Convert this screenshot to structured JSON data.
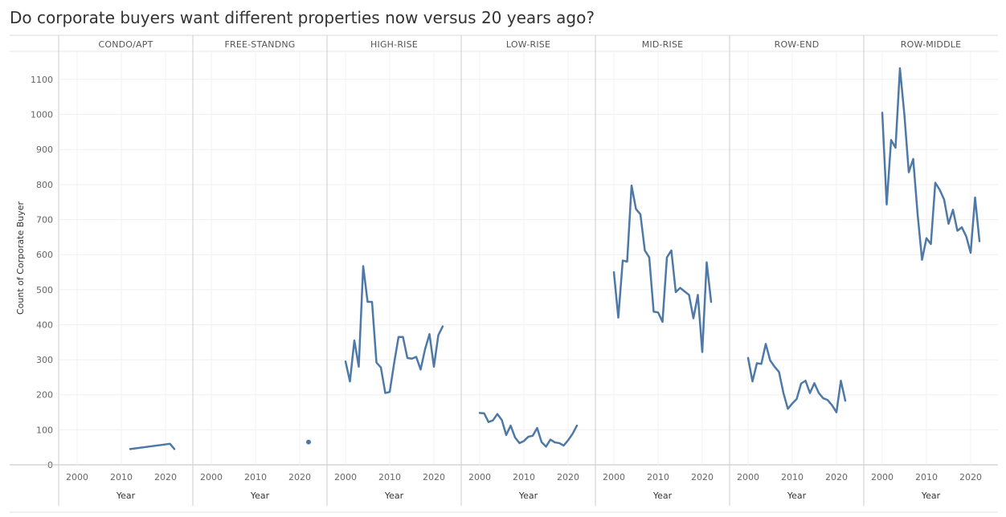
{
  "chart_data": {
    "type": "line",
    "title": "Do corporate buyers want different properties now versus 20 years ago?",
    "ylabel": "Count of Corporate Buyer",
    "xlabel": "Year",
    "ylim": [
      0,
      1180
    ],
    "yticks": [
      0,
      100,
      200,
      300,
      400,
      500,
      600,
      700,
      800,
      900,
      1000,
      1100
    ],
    "xlim": [
      1998,
      2024
    ],
    "xticks": [
      2000,
      2010,
      2020
    ],
    "grid": true,
    "color": "#4e79a7",
    "panels": [
      {
        "name": "CONDO/APT",
        "x": [
          2012,
          2021,
          2022
        ],
        "y": [
          45,
          60,
          45
        ]
      },
      {
        "name": "FREE-STANDNG",
        "x": [
          2022
        ],
        "y": [
          65
        ]
      },
      {
        "name": "HIGH-RISE",
        "x": [
          2000,
          2001,
          2002,
          2003,
          2004,
          2005,
          2006,
          2007,
          2008,
          2009,
          2010,
          2011,
          2012,
          2013,
          2014,
          2015,
          2016,
          2017,
          2018,
          2019,
          2020,
          2021,
          2022
        ],
        "y": [
          295,
          238,
          355,
          280,
          567,
          465,
          465,
          292,
          278,
          205,
          208,
          290,
          365,
          365,
          305,
          303,
          308,
          272,
          330,
          373,
          280,
          370,
          395
        ]
      },
      {
        "name": "LOW-RISE",
        "x": [
          2000,
          2001,
          2002,
          2003,
          2004,
          2005,
          2006,
          2007,
          2008,
          2009,
          2010,
          2011,
          2012,
          2013,
          2014,
          2015,
          2016,
          2017,
          2018,
          2019,
          2020,
          2021,
          2022
        ],
        "y": [
          148,
          147,
          122,
          127,
          145,
          128,
          85,
          112,
          78,
          62,
          68,
          80,
          83,
          105,
          65,
          52,
          72,
          64,
          62,
          55,
          70,
          88,
          112
        ]
      },
      {
        "name": "MID-RISE",
        "x": [
          2000,
          2001,
          2002,
          2003,
          2004,
          2005,
          2006,
          2007,
          2008,
          2009,
          2010,
          2011,
          2012,
          2013,
          2014,
          2015,
          2016,
          2017,
          2018,
          2019,
          2020,
          2021,
          2022
        ],
        "y": [
          550,
          420,
          583,
          580,
          797,
          730,
          715,
          612,
          592,
          437,
          435,
          408,
          592,
          612,
          493,
          505,
          495,
          485,
          418,
          485,
          322,
          578,
          465
        ]
      },
      {
        "name": "ROW-END",
        "x": [
          2000,
          2001,
          2002,
          2003,
          2004,
          2005,
          2006,
          2007,
          2008,
          2009,
          2010,
          2011,
          2012,
          2013,
          2014,
          2015,
          2016,
          2017,
          2018,
          2019,
          2020,
          2021,
          2022
        ],
        "y": [
          305,
          238,
          290,
          288,
          345,
          298,
          280,
          265,
          205,
          160,
          175,
          188,
          232,
          240,
          205,
          233,
          205,
          190,
          185,
          170,
          150,
          240,
          183
        ]
      },
      {
        "name": "ROW-MIDDLE",
        "x": [
          2000,
          2001,
          2002,
          2003,
          2004,
          2005,
          2006,
          2007,
          2008,
          2009,
          2010,
          2011,
          2012,
          2013,
          2014,
          2015,
          2016,
          2017,
          2018,
          2019,
          2020,
          2021,
          2022
        ],
        "y": [
          1005,
          743,
          927,
          905,
          1132,
          1000,
          835,
          873,
          715,
          585,
          647,
          630,
          805,
          785,
          757,
          688,
          728,
          668,
          678,
          652,
          605,
          763,
          638
        ]
      }
    ]
  }
}
